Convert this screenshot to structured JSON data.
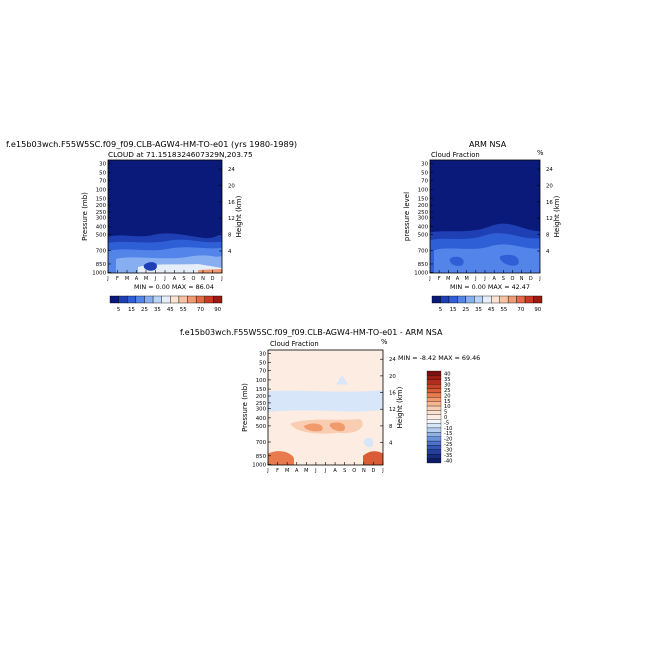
{
  "chart_data": [
    {
      "type": "heatmap",
      "title": "f.e15b03wch.F55W5SC.f09_f09.CLB-AGW4-HM-TO-e01 (yrs 1980-1989)",
      "subtitle": "CLOUD at 71.1518324607329N,203.75",
      "ylabel": "Pressure (mb)",
      "ylabel_right": "Height (km)",
      "x_ticks": [
        "J",
        "F",
        "M",
        "A",
        "M",
        "J",
        "J",
        "A",
        "S",
        "O",
        "N",
        "D",
        "J"
      ],
      "y_ticks": [
        "30",
        "50",
        "70",
        "100",
        "150",
        "200",
        "250",
        "300",
        "400",
        "500",
        "700",
        "850",
        "1000"
      ],
      "y_right_ticks": [
        "24",
        "20",
        "16",
        "12",
        "8",
        "4"
      ],
      "min": 0.0,
      "max": 86.04,
      "min_label": "MIN =",
      "min_value": "0.00",
      "max_label": "MAX =",
      "max_value": "86.04",
      "colorbar_labels": [
        "5",
        "15",
        "25",
        "35",
        "45",
        "55",
        "70",
        "90"
      ]
    },
    {
      "type": "heatmap",
      "title": "ARM NSA",
      "subtitle": "Cloud Fraction",
      "corner_label": "%",
      "ylabel": "pressure level",
      "ylabel_right": "Height (km)",
      "x_ticks": [
        "J",
        "F",
        "M",
        "A",
        "M",
        "J",
        "J",
        "A",
        "S",
        "O",
        "N",
        "D",
        "J"
      ],
      "y_ticks": [
        "30",
        "50",
        "70",
        "100",
        "150",
        "200",
        "250",
        "300",
        "400",
        "500",
        "700",
        "850",
        "1000"
      ],
      "y_right_ticks": [
        "24",
        "20",
        "16",
        "12",
        "8",
        "4"
      ],
      "min": 0.0,
      "max": 42.47,
      "min_label": "MIN =",
      "min_value": "0.00",
      "max_label": "MAX =",
      "max_value": "42.47",
      "colorbar_labels": [
        "5",
        "15",
        "25",
        "35",
        "45",
        "55",
        "70",
        "90"
      ]
    },
    {
      "type": "heatmap",
      "title": "f.e15b03wch.F55W5SC.f09_f09.CLB-AGW4-HM-TO-e01 - ARM NSA",
      "subtitle": "Cloud Fraction",
      "corner_label": "%",
      "ylabel": "Pressure (mb)",
      "ylabel_right": "Height (km)",
      "x_ticks": [
        "J",
        "F",
        "M",
        "A",
        "M",
        "J",
        "J",
        "A",
        "S",
        "O",
        "N",
        "D",
        "J"
      ],
      "y_ticks": [
        "30",
        "50",
        "70",
        "100",
        "150",
        "200",
        "250",
        "300",
        "400",
        "500",
        "700",
        "850",
        "1000"
      ],
      "y_right_ticks": [
        "24",
        "20",
        "16",
        "12",
        "8",
        "4"
      ],
      "min": -8.42,
      "max": 69.46,
      "min_label": "MIN =",
      "min_value": "-8.42",
      "max_label": "MAX =",
      "max_value": "69.46",
      "colorbar_labels": [
        "40",
        "35",
        "30",
        "25",
        "20",
        "15",
        "10",
        "5",
        "0",
        "-5",
        "-10",
        "-15",
        "-20",
        "-25",
        "-30",
        "-35",
        "-40"
      ]
    }
  ],
  "colors": {
    "seq_scale": [
      "#0a1a7a",
      "#1f3fb4",
      "#2f5fd6",
      "#5284ea",
      "#86aef0",
      "#b9d3f6",
      "#e6eefa",
      "#fbe3d3",
      "#f6c2a3",
      "#f09a6f",
      "#e26a45",
      "#c83a22",
      "#9b1a12"
    ],
    "div_scale": [
      "#7a1010",
      "#9c1c14",
      "#b42d1c",
      "#c84328",
      "#da5c37",
      "#e87a4e",
      "#f19a6c",
      "#f6b690",
      "#f9cdb1",
      "#fbe0cf",
      "#fcece2",
      "#f2f5fb",
      "#d7e6f8",
      "#b6cff1",
      "#8fb3e8",
      "#6a93dc",
      "#4d71cc",
      "#3656b8",
      "#243f9d",
      "#172b82",
      "#0d1c66"
    ]
  }
}
